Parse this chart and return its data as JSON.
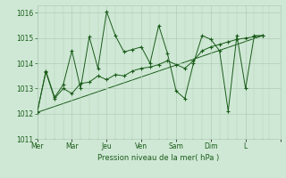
{
  "xlabel": "Pression niveau de la mer( hPa )",
  "ylim": [
    1011,
    1016.3
  ],
  "yticks": [
    1011,
    1012,
    1013,
    1014,
    1015,
    1016
  ],
  "background_color": "#cfe8d5",
  "grid_color": "#b0ccb8",
  "line_color": "#1a5c1a",
  "day_labels": [
    "Mer",
    "Mar",
    "Jeu",
    "Ven",
    "Sam",
    "Dim",
    "L"
  ],
  "day_positions": [
    2,
    26,
    50,
    74,
    98,
    122,
    146
  ],
  "xlim": [
    0,
    160
  ],
  "minor_xticks": [
    0,
    6,
    12,
    18,
    24,
    30,
    36,
    42,
    48,
    54,
    60,
    66,
    72,
    78,
    84,
    90,
    96,
    102,
    108,
    114,
    120,
    126,
    132,
    138,
    144,
    150,
    156,
    160
  ],
  "line1_x": [
    0,
    6,
    12,
    18,
    24,
    30,
    36,
    42,
    48,
    54,
    60,
    66,
    72,
    78,
    84,
    90,
    96,
    102,
    108,
    114,
    120,
    126,
    132,
    138,
    144,
    150,
    156
  ],
  "line1_y": [
    1012.05,
    1013.7,
    1012.65,
    1013.15,
    1014.5,
    1013.0,
    1015.05,
    1013.8,
    1016.05,
    1015.1,
    1014.45,
    1014.55,
    1014.65,
    1014.0,
    1015.5,
    1014.4,
    1012.9,
    1012.6,
    1014.0,
    1015.1,
    1014.95,
    1014.5,
    1012.1,
    1015.1,
    1013.0,
    1015.1,
    1015.1
  ],
  "line2_x": [
    0,
    6,
    12,
    18,
    24,
    30,
    36,
    42,
    48,
    54,
    60,
    66,
    72,
    78,
    84,
    90,
    96,
    102,
    108,
    114,
    120,
    126,
    132,
    138,
    144,
    150,
    156
  ],
  "line2_y": [
    1012.05,
    1013.65,
    1012.6,
    1013.0,
    1012.8,
    1013.2,
    1013.25,
    1013.5,
    1013.35,
    1013.55,
    1013.5,
    1013.7,
    1013.8,
    1013.85,
    1013.95,
    1014.1,
    1013.95,
    1013.8,
    1014.1,
    1014.5,
    1014.65,
    1014.75,
    1014.85,
    1014.95,
    1015.0,
    1015.05,
    1015.1
  ],
  "trend_x": [
    0,
    156
  ],
  "trend_y": [
    1012.05,
    1015.1
  ]
}
